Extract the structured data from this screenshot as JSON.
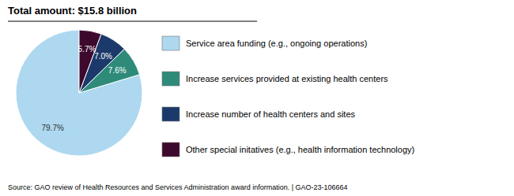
{
  "chart_data": {
    "type": "pie",
    "title": "Total amount: $15.8 billion",
    "annotations": [
      "Source: GAO review of Health Resources and Services Administration award information.  |  GAO-23-106664"
    ],
    "categories": [
      "Service area funding (e.g., ongoing operations)",
      "Increase services provided at existing health centers",
      "Increase number of health centers and sites",
      "Other special initatives (e.g., health information technology)"
    ],
    "values": [
      79.7,
      7.6,
      7.0,
      5.7
    ],
    "value_labels": [
      "79.7%",
      "7.6%",
      "7.0%",
      "5.7%"
    ],
    "colors": [
      "#add8f0",
      "#2e8b7a",
      "#1b3a6b",
      "#3d0a2e"
    ],
    "data_labels": true,
    "legend": "right"
  }
}
